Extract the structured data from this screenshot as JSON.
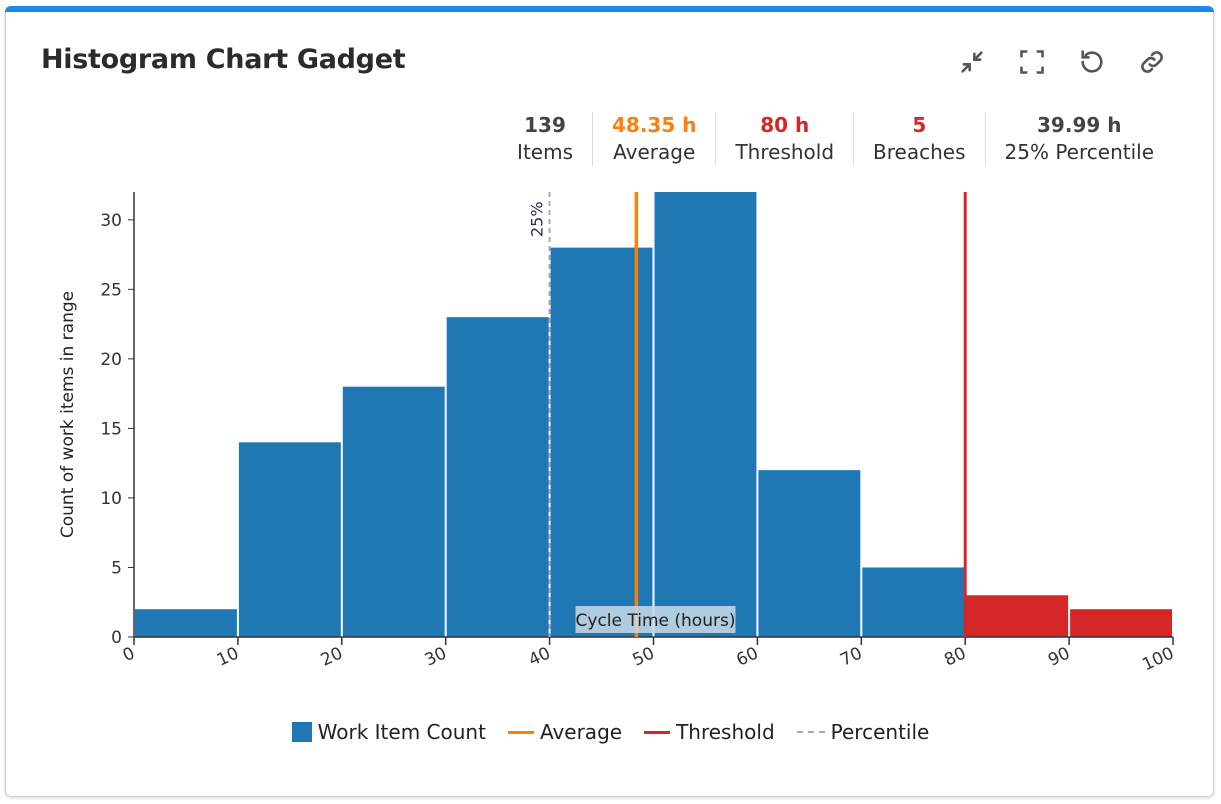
{
  "header": {
    "title": "Histogram Chart Gadget",
    "icons": [
      "collapse-icon",
      "fullscreen-icon",
      "refresh-icon",
      "link-icon"
    ]
  },
  "stats": [
    {
      "value": "139",
      "label": "Items",
      "color": "#444444"
    },
    {
      "value": "48.35 h",
      "label": "Average",
      "color": "#ff7f0e"
    },
    {
      "value": "80 h",
      "label": "Threshold",
      "color": "#d62728"
    },
    {
      "value": "5",
      "label": "Breaches",
      "color": "#d62728"
    },
    {
      "value": "39.99 h",
      "label": "25% Percentile",
      "color": "#444444"
    }
  ],
  "chart_data": {
    "type": "bar",
    "title": "",
    "xlabel": "Cycle Time (hours)",
    "ylabel": "Count of work items in range",
    "bins": [
      [
        0,
        10
      ],
      [
        10,
        20
      ],
      [
        20,
        30
      ],
      [
        30,
        40
      ],
      [
        40,
        50
      ],
      [
        50,
        60
      ],
      [
        60,
        70
      ],
      [
        70,
        80
      ],
      [
        80,
        90
      ],
      [
        90,
        100
      ]
    ],
    "values": [
      2,
      14,
      18,
      23,
      28,
      32,
      12,
      5,
      3,
      2
    ],
    "xlim": [
      0,
      100
    ],
    "ylim": [
      0,
      32
    ],
    "xticks": [
      0,
      10,
      20,
      30,
      40,
      50,
      60,
      70,
      80,
      90,
      100
    ],
    "yticks": [
      0,
      5,
      10,
      15,
      20,
      25,
      30
    ],
    "average": 48.35,
    "threshold": 80,
    "percentile": {
      "value": 39.99,
      "label": "25%"
    },
    "colors": {
      "bar": "#1f77b4",
      "breach": "#d62728",
      "average": "#ff7f0e",
      "threshold": "#d62728",
      "percentile": "#aaaaaa"
    },
    "grid": false,
    "legend": {
      "position": "bottom",
      "entries": [
        "Work Item Count",
        "Average",
        "Threshold",
        "Percentile"
      ]
    }
  }
}
